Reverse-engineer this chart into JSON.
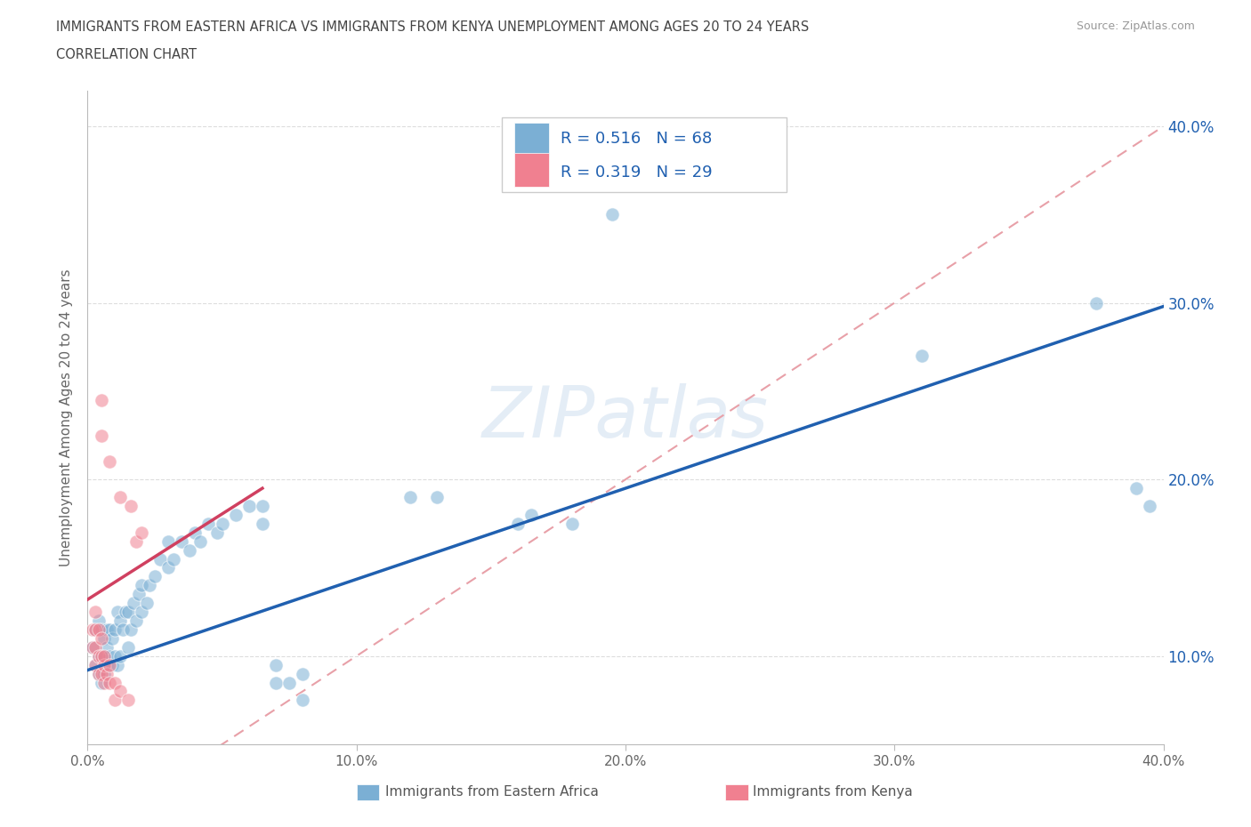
{
  "title_line1": "IMMIGRANTS FROM EASTERN AFRICA VS IMMIGRANTS FROM KENYA UNEMPLOYMENT AMONG AGES 20 TO 24 YEARS",
  "title_line2": "CORRELATION CHART",
  "source": "Source: ZipAtlas.com",
  "ylabel": "Unemployment Among Ages 20 to 24 years",
  "xlim": [
    0.0,
    0.4
  ],
  "ylim": [
    0.05,
    0.42
  ],
  "xticks": [
    0.0,
    0.1,
    0.2,
    0.3,
    0.4
  ],
  "yticks": [
    0.1,
    0.2,
    0.3,
    0.4
  ],
  "xtick_labels": [
    "0.0%",
    "10.0%",
    "20.0%",
    "30.0%",
    "40.0%"
  ],
  "ytick_labels": [
    "10.0%",
    "20.0%",
    "30.0%",
    "40.0%"
  ],
  "watermark": "ZIPatlas",
  "blue_scatter_color": "#7bafd4",
  "pink_scatter_color": "#f08090",
  "blue_line_color": "#2060b0",
  "pink_line_color": "#d04060",
  "diagonal_color": "#cccccc",
  "title_color": "#2060b0",
  "legend_R_N_color": "#2060b0",
  "R_blue": 0.516,
  "N_blue": 68,
  "R_pink": 0.319,
  "N_pink": 29,
  "blue_line_x": [
    0.0,
    0.4
  ],
  "blue_line_y": [
    0.092,
    0.298
  ],
  "pink_line_x": [
    0.0,
    0.065
  ],
  "pink_line_y": [
    0.132,
    0.195
  ],
  "blue_points": [
    [
      0.002,
      0.105
    ],
    [
      0.003,
      0.095
    ],
    [
      0.003,
      0.115
    ],
    [
      0.004,
      0.09
    ],
    [
      0.004,
      0.1
    ],
    [
      0.004,
      0.12
    ],
    [
      0.005,
      0.085
    ],
    [
      0.005,
      0.1
    ],
    [
      0.005,
      0.115
    ],
    [
      0.006,
      0.09
    ],
    [
      0.006,
      0.1
    ],
    [
      0.006,
      0.11
    ],
    [
      0.007,
      0.095
    ],
    [
      0.007,
      0.105
    ],
    [
      0.007,
      0.115
    ],
    [
      0.008,
      0.1
    ],
    [
      0.008,
      0.115
    ],
    [
      0.009,
      0.095
    ],
    [
      0.009,
      0.11
    ],
    [
      0.01,
      0.1
    ],
    [
      0.01,
      0.115
    ],
    [
      0.011,
      0.095
    ],
    [
      0.011,
      0.125
    ],
    [
      0.012,
      0.1
    ],
    [
      0.012,
      0.12
    ],
    [
      0.013,
      0.115
    ],
    [
      0.014,
      0.125
    ],
    [
      0.015,
      0.105
    ],
    [
      0.015,
      0.125
    ],
    [
      0.016,
      0.115
    ],
    [
      0.017,
      0.13
    ],
    [
      0.018,
      0.12
    ],
    [
      0.019,
      0.135
    ],
    [
      0.02,
      0.125
    ],
    [
      0.02,
      0.14
    ],
    [
      0.022,
      0.13
    ],
    [
      0.023,
      0.14
    ],
    [
      0.025,
      0.145
    ],
    [
      0.027,
      0.155
    ],
    [
      0.03,
      0.15
    ],
    [
      0.03,
      0.165
    ],
    [
      0.032,
      0.155
    ],
    [
      0.035,
      0.165
    ],
    [
      0.038,
      0.16
    ],
    [
      0.04,
      0.17
    ],
    [
      0.042,
      0.165
    ],
    [
      0.045,
      0.175
    ],
    [
      0.048,
      0.17
    ],
    [
      0.05,
      0.175
    ],
    [
      0.055,
      0.18
    ],
    [
      0.06,
      0.185
    ],
    [
      0.065,
      0.175
    ],
    [
      0.065,
      0.185
    ],
    [
      0.07,
      0.085
    ],
    [
      0.07,
      0.095
    ],
    [
      0.075,
      0.085
    ],
    [
      0.08,
      0.075
    ],
    [
      0.08,
      0.09
    ],
    [
      0.12,
      0.19
    ],
    [
      0.13,
      0.19
    ],
    [
      0.16,
      0.175
    ],
    [
      0.165,
      0.18
    ],
    [
      0.18,
      0.175
    ],
    [
      0.195,
      0.35
    ],
    [
      0.31,
      0.27
    ],
    [
      0.375,
      0.3
    ],
    [
      0.39,
      0.195
    ],
    [
      0.395,
      0.185
    ]
  ],
  "pink_points": [
    [
      0.002,
      0.105
    ],
    [
      0.002,
      0.115
    ],
    [
      0.003,
      0.095
    ],
    [
      0.003,
      0.105
    ],
    [
      0.003,
      0.115
    ],
    [
      0.003,
      0.125
    ],
    [
      0.004,
      0.09
    ],
    [
      0.004,
      0.1
    ],
    [
      0.004,
      0.115
    ],
    [
      0.005,
      0.09
    ],
    [
      0.005,
      0.1
    ],
    [
      0.005,
      0.11
    ],
    [
      0.006,
      0.085
    ],
    [
      0.006,
      0.095
    ],
    [
      0.006,
      0.1
    ],
    [
      0.007,
      0.09
    ],
    [
      0.008,
      0.085
    ],
    [
      0.008,
      0.095
    ],
    [
      0.01,
      0.075
    ],
    [
      0.01,
      0.085
    ],
    [
      0.012,
      0.08
    ],
    [
      0.015,
      0.075
    ],
    [
      0.016,
      0.185
    ],
    [
      0.018,
      0.165
    ],
    [
      0.02,
      0.17
    ],
    [
      0.005,
      0.225
    ],
    [
      0.005,
      0.245
    ],
    [
      0.008,
      0.21
    ],
    [
      0.012,
      0.19
    ]
  ]
}
